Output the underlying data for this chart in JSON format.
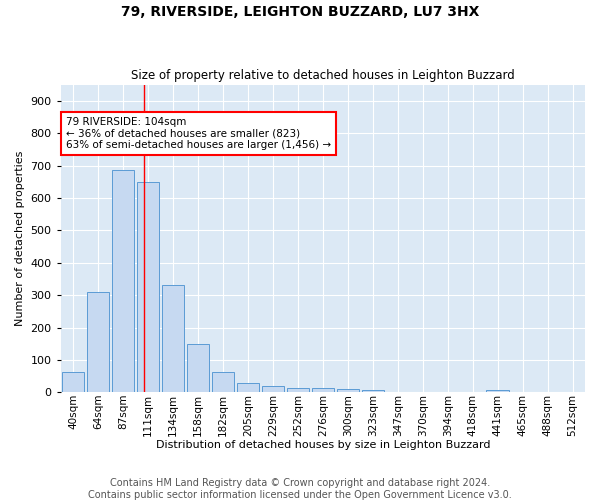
{
  "title1": "79, RIVERSIDE, LEIGHTON BUZZARD, LU7 3HX",
  "title2": "Size of property relative to detached houses in Leighton Buzzard",
  "xlabel": "Distribution of detached houses by size in Leighton Buzzard",
  "ylabel": "Number of detached properties",
  "footer1": "Contains HM Land Registry data © Crown copyright and database right 2024.",
  "footer2": "Contains public sector information licensed under the Open Government Licence v3.0.",
  "bar_labels": [
    "40sqm",
    "64sqm",
    "87sqm",
    "111sqm",
    "134sqm",
    "158sqm",
    "182sqm",
    "205sqm",
    "229sqm",
    "252sqm",
    "276sqm",
    "300sqm",
    "323sqm",
    "347sqm",
    "370sqm",
    "394sqm",
    "418sqm",
    "441sqm",
    "465sqm",
    "488sqm",
    "512sqm"
  ],
  "bar_values": [
    63,
    310,
    686,
    648,
    330,
    150,
    63,
    30,
    20,
    12,
    12,
    10,
    8,
    0,
    0,
    0,
    0,
    8,
    0,
    0,
    0
  ],
  "bar_color": "#c6d9f1",
  "bar_edge_color": "#5b9bd5",
  "marker_label": "79 RIVERSIDE: 104sqm",
  "annotation_line1": "← 36% of detached houses are smaller (823)",
  "annotation_line2": "63% of semi-detached houses are larger (1,456) →",
  "ylim": [
    0,
    950
  ],
  "yticks": [
    0,
    100,
    200,
    300,
    400,
    500,
    600,
    700,
    800,
    900
  ],
  "background_color": "#dce9f5",
  "grid_color": "#ffffff",
  "title1_fontsize": 10,
  "title2_fontsize": 8.5,
  "axis_fontsize": 8,
  "footer_fontsize": 7
}
